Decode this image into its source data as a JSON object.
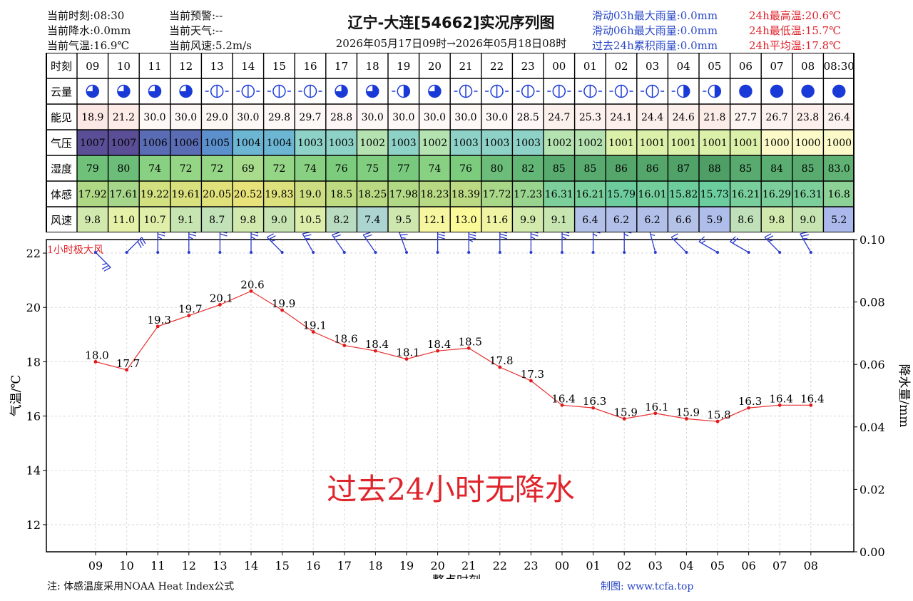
{
  "header": {
    "current_time": "当前时刻:08:30",
    "current_precip": "当前降水:0.0mm",
    "current_temp": "当前气温:16.9℃",
    "current_warning": "当前预警:--",
    "current_weather": "当前天气:--",
    "current_wind": "当前风速:5.2m/s",
    "title": "辽宁-大连[54662]实况序列图",
    "subtitle": "2026年05月17日09时→2026年05月18日08时",
    "rain_03h": "滑动03h最大雨量:0.0mm",
    "rain_06h": "滑动06h最大雨量:0.0mm",
    "rain_24h": "过去24h累积雨量:0.0mm",
    "max_temp": "24h最高温:20.6℃",
    "min_temp": "24h最低温:15.7℃",
    "avg_temp": "24h平均温:17.8℃"
  },
  "table": {
    "row_labels": [
      "时刻",
      "云量",
      "能见",
      "气压",
      "湿度",
      "体感",
      "风速"
    ],
    "hours": [
      "09",
      "10",
      "11",
      "12",
      "13",
      "14",
      "15",
      "16",
      "17",
      "18",
      "19",
      "20",
      "21",
      "22",
      "23",
      "00",
      "01",
      "02",
      "03",
      "04",
      "05",
      "06",
      "07",
      "08",
      "08:30"
    ],
    "cloud": [
      "q3",
      "q3",
      "q3",
      "q3",
      "q0",
      "q0",
      "q0",
      "q0",
      "q3",
      "q3",
      "q2",
      "q3",
      "q0",
      "q0",
      "q0",
      "q0",
      "q0",
      "q0",
      "q0",
      "q2",
      "q2",
      "q4",
      "q4",
      "q4",
      "q4"
    ],
    "visibility": [
      "18.9",
      "21.2",
      "30.0",
      "30.0",
      "29.0",
      "30.0",
      "29.8",
      "29.7",
      "28.8",
      "30.0",
      "30.0",
      "30.0",
      "30.0",
      "30.0",
      "28.5",
      "24.7",
      "25.3",
      "24.1",
      "24.4",
      "24.6",
      "21.8",
      "27.7",
      "26.7",
      "23.8",
      "26.4"
    ],
    "pressure": [
      "1007",
      "1007",
      "1006",
      "1006",
      "1005",
      "1004",
      "1004",
      "1003",
      "1003",
      "1002",
      "1003",
      "1002",
      "1003",
      "1003",
      "1003",
      "1002",
      "1002",
      "1001",
      "1001",
      "1001",
      "1001",
      "1001",
      "1000",
      "1000",
      "1000"
    ],
    "humidity": [
      "79",
      "80",
      "74",
      "72",
      "72",
      "69",
      "72",
      "74",
      "76",
      "75",
      "77",
      "74",
      "76",
      "80",
      "82",
      "85",
      "85",
      "86",
      "86",
      "87",
      "88",
      "85",
      "84",
      "85",
      "83.0"
    ],
    "feels_like": [
      "17.92",
      "17.61",
      "19.22",
      "19.61",
      "20.05",
      "20.52",
      "19.83",
      "19.0",
      "18.5",
      "18.25",
      "17.98",
      "18.23",
      "18.39",
      "17.72",
      "17.23",
      "16.31",
      "16.21",
      "15.79",
      "16.01",
      "15.82",
      "15.73",
      "16.21",
      "16.29",
      "16.31",
      "16.8"
    ],
    "wind_speed": [
      "9.8",
      "11.0",
      "10.7",
      "9.1",
      "8.7",
      "9.8",
      "9.0",
      "10.5",
      "8.2",
      "7.4",
      "9.5",
      "12.1",
      "13.0",
      "11.6",
      "9.9",
      "9.1",
      "6.4",
      "6.2",
      "6.2",
      "6.6",
      "5.9",
      "8.6",
      "9.8",
      "9.0",
      "5.2"
    ]
  },
  "chart_data": {
    "type": "line",
    "x": [
      "09",
      "10",
      "11",
      "12",
      "13",
      "14",
      "15",
      "16",
      "17",
      "18",
      "19",
      "20",
      "21",
      "22",
      "23",
      "00",
      "01",
      "02",
      "03",
      "04",
      "05",
      "06",
      "07",
      "08"
    ],
    "series": [
      {
        "values": [
          18.0,
          17.7,
          19.3,
          19.7,
          20.1,
          20.6,
          19.9,
          19.1,
          18.6,
          18.4,
          18.1,
          18.4,
          18.5,
          17.8,
          17.3,
          16.4,
          16.3,
          15.9,
          16.1,
          15.9,
          15.8,
          16.3,
          16.4,
          16.4
        ]
      }
    ],
    "xlabel": "整点时刻",
    "ylabel": "气温/℃",
    "y2label": "降水量/mm",
    "ylim": [
      11,
      22.5
    ],
    "y2lim": [
      0,
      0.1
    ],
    "yticks": [
      12,
      14,
      16,
      18,
      20,
      22
    ],
    "y2ticks": [
      "0.00",
      "0.02",
      "0.04",
      "0.06",
      "0.08",
      "0.10"
    ],
    "grid": true,
    "line_color": "#e83030",
    "annotation": "过去24小时无降水",
    "wind_label": "1小时极大风",
    "wind_barb_direction_deg": [
      45,
      135,
      180,
      180,
      180,
      180,
      225,
      210,
      215,
      215,
      200,
      180,
      180,
      180,
      180,
      180,
      180,
      180,
      195,
      225,
      240,
      240,
      225,
      210
    ],
    "wind_barb_speed": [
      9.8,
      11.0,
      10.7,
      9.1,
      8.7,
      9.8,
      9.0,
      10.5,
      8.2,
      7.4,
      9.5,
      12.1,
      13.0,
      11.6,
      9.9,
      9.1,
      6.4,
      6.2,
      6.2,
      6.6,
      5.9,
      8.6,
      9.8,
      9.0
    ]
  },
  "footer": {
    "note": "注: 体感温度采用NOAA Heat Index公式",
    "credit": "制图: www.tcfa.top"
  },
  "colors": {
    "title_red": "#e0242c",
    "info_blue": "#2a48c8",
    "cloud_blue": "#1a3ad8",
    "barb_blue": "#2a3ad0"
  }
}
